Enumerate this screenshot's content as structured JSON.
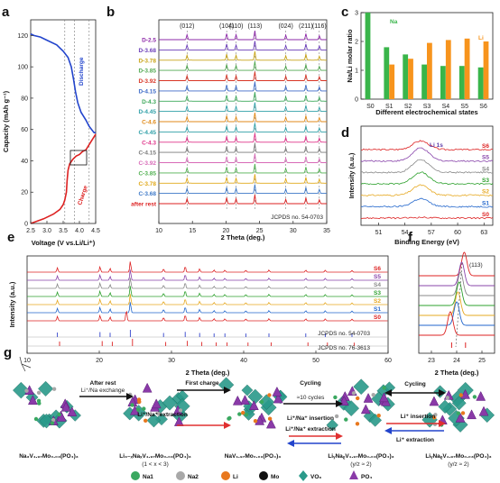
{
  "panel_labels": [
    "a",
    "b",
    "c",
    "d",
    "e",
    "f",
    "g"
  ],
  "chart_data": [
    {
      "panel": "a",
      "type": "line",
      "xlabel": "Voltage (V vs.Li/Li⁺)",
      "ylabel": "Capacity (mAh g⁻¹)",
      "xlim": [
        2.5,
        4.5
      ],
      "ylim": [
        0,
        130
      ],
      "xticks": [
        "2.5",
        "3.0",
        "3.5",
        "4.0",
        "4.5"
      ],
      "yticks": [
        "0",
        "20",
        "40",
        "60",
        "80",
        "100",
        "120"
      ],
      "vlines": [
        3.55,
        3.85,
        4.3
      ],
      "series": [
        {
          "name": "Discharge",
          "color": "#2244cc",
          "points": [
            [
              4.5,
              58
            ],
            [
              4.45,
              58
            ],
            [
              4.3,
              62
            ],
            [
              4.2,
              66
            ],
            [
              4.05,
              71
            ],
            [
              3.95,
              77
            ],
            [
              3.88,
              84
            ],
            [
              3.82,
              92
            ],
            [
              3.75,
              100
            ],
            [
              3.65,
              106
            ],
            [
              3.5,
              110
            ],
            [
              3.3,
              114
            ],
            [
              3.0,
              117
            ],
            [
              2.8,
              119
            ],
            [
              2.6,
              120
            ],
            [
              2.5,
              121
            ]
          ]
        },
        {
          "name": "Charge",
          "color": "#dd2222",
          "points": [
            [
              2.5,
              0
            ],
            [
              2.9,
              3
            ],
            [
              3.2,
              6
            ],
            [
              3.4,
              9
            ],
            [
              3.5,
              12
            ],
            [
              3.55,
              15
            ],
            [
              3.6,
              20
            ],
            [
              3.62,
              27
            ],
            [
              3.65,
              34
            ],
            [
              3.7,
              38
            ],
            [
              3.8,
              41
            ],
            [
              3.9,
              43
            ],
            [
              4.0,
              44
            ],
            [
              4.1,
              46
            ],
            [
              4.2,
              47
            ],
            [
              4.35,
              52
            ],
            [
              4.5,
              57
            ]
          ]
        }
      ]
    },
    {
      "panel": "b",
      "type": "line",
      "xlabel": "2 Theta (deg.)",
      "ylabel": "Intensity (a.u.)",
      "xlim": [
        10,
        35
      ],
      "xticks": [
        "10",
        "15",
        "20",
        "25",
        "30",
        "35"
      ],
      "peaks": [
        14.2,
        20.1,
        21.5,
        24.3,
        28.9,
        31.9,
        33.9
      ],
      "peak_labels": [
        "(012)",
        "(104)",
        "(110)",
        "(113)",
        "(024)",
        "(211)",
        "(116)"
      ],
      "series": [
        {
          "name": "D-2.5",
          "color": "#8c28a8"
        },
        {
          "name": "D-3.68",
          "color": "#6a3cb8"
        },
        {
          "name": "D-3.78",
          "color": "#c8a418"
        },
        {
          "name": "D-3.85",
          "color": "#50a850"
        },
        {
          "name": "D-3.92",
          "color": "#d83424"
        },
        {
          "name": "D-4.15",
          "color": "#3c6ac8"
        },
        {
          "name": "D-4.3",
          "color": "#3ca85a"
        },
        {
          "name": "D-4.45",
          "color": "#30a0a8"
        },
        {
          "name": "C-4.6",
          "color": "#e08a18"
        },
        {
          "name": "C-4.45",
          "color": "#30a0a8"
        },
        {
          "name": "C-4.3",
          "color": "#e0348a"
        },
        {
          "name": "C-4.15",
          "color": "#7a7a7a"
        },
        {
          "name": "C-3.92",
          "color": "#d86ab8"
        },
        {
          "name": "C-3.85",
          "color": "#50b050"
        },
        {
          "name": "C-3.78",
          "color": "#e0a818"
        },
        {
          "name": "C-3.68",
          "color": "#3c78c8"
        },
        {
          "name": "after rest",
          "color": "#dd2222"
        }
      ],
      "reference": "JCPDS no. 54-0703"
    },
    {
      "panel": "c",
      "type": "bar",
      "xlabel": "Different electrochemical states",
      "ylabel": "Na/Li molar ratio",
      "categories": [
        "S0",
        "S1",
        "S2",
        "S3",
        "S4",
        "S5",
        "S6"
      ],
      "ylim": [
        0,
        3
      ],
      "yticks": [
        "0",
        "1",
        "2",
        "3"
      ],
      "series": [
        {
          "name": "Na",
          "color": "#39b54a",
          "values": [
            3.0,
            1.8,
            1.55,
            1.2,
            1.15,
            1.15,
            1.1
          ]
        },
        {
          "name": "Li",
          "color": "#f7941d",
          "values": [
            0,
            1.2,
            1.4,
            1.95,
            2.05,
            2.1,
            2.0
          ]
        }
      ]
    },
    {
      "panel": "d",
      "type": "line",
      "title": "Li 1s",
      "xlabel": "Binding Energy (eV)",
      "ylabel": "Intensity (a.u.)",
      "xlim": [
        49,
        64
      ],
      "xticks": [
        "51",
        "54",
        "57",
        "60",
        "63"
      ],
      "series": [
        {
          "name": "S6",
          "color": "#dd2222"
        },
        {
          "name": "S5",
          "color": "#8844aa"
        },
        {
          "name": "S4",
          "color": "#888888"
        },
        {
          "name": "S3",
          "color": "#2ca02c"
        },
        {
          "name": "S2",
          "color": "#e6a820"
        },
        {
          "name": "S1",
          "color": "#2266cc"
        },
        {
          "name": "S0",
          "color": "#dd2222"
        }
      ]
    },
    {
      "panel": "e",
      "type": "line",
      "xlabel": "2 Theta (deg.)",
      "ylabel": "Intensity (a.u.)",
      "xlim": [
        10,
        60
      ],
      "xticks": [
        "10",
        "20",
        "30",
        "40",
        "50",
        "60"
      ],
      "peaks": [
        14.2,
        20.1,
        21.5,
        24.3,
        28.9,
        31.9,
        33.9,
        35.9,
        37.4,
        40.3,
        43.5,
        48.6,
        51.3,
        55.0
      ],
      "series": [
        {
          "name": "S6",
          "color": "#dd2222"
        },
        {
          "name": "S5",
          "color": "#8844aa"
        },
        {
          "name": "S4",
          "color": "#888888"
        },
        {
          "name": "S3",
          "color": "#2ca02c"
        },
        {
          "name": "S2",
          "color": "#e6a820"
        },
        {
          "name": "S1",
          "color": "#2266cc"
        },
        {
          "name": "S0",
          "color": "#dd2222"
        }
      ],
      "references": [
        {
          "name": "JCPDS no. 54-0703",
          "color": "#3344cc"
        },
        {
          "name": "JCPDS no. 76-3613",
          "color": "#dd2222"
        }
      ]
    },
    {
      "panel": "f",
      "type": "line",
      "xlabel": "2 Theta (deg.)",
      "xlim": [
        22.5,
        25.5
      ],
      "xticks": [
        "23",
        "24",
        "25"
      ],
      "annotation": "(113)",
      "peak_centers": [
        24.3,
        24.2,
        24.15,
        24.1,
        24.05,
        24.0,
        23.75
      ],
      "series_colors": [
        "#dd2222",
        "#8844aa",
        "#888888",
        "#2ca02c",
        "#e6a820",
        "#2266cc",
        "#dd2222"
      ]
    }
  ],
  "panel_g": {
    "arrows": [
      {
        "label": "After rest",
        "sub": "Li⁺/Na exchange"
      },
      {
        "label": "First charge"
      },
      {
        "label": "Cycling",
        "sub": "≈10 cycles"
      },
      {
        "label": "Cycling"
      },
      {
        "label": "Li⁺/Na⁺ extraction"
      },
      {
        "label": "Li⁺/Na⁺ insertion"
      },
      {
        "label": "Li⁺/Na⁺ extraction"
      },
      {
        "label": "Li⁺ insertion"
      },
      {
        "label": "Li⁺ extraction"
      }
    ],
    "formulas": [
      "Na₃V₁.₉₇Mo₀.₀₃(PO₄)₃",
      "Li₃₋ₓNaₓV₁.₉₇Mo₀.₀₃(PO₄)₃",
      "NaV₁.₉₇Mo₀.₀₃(PO₄)₃",
      "LiᵧNaᵨV₁.₉₇Mo₀.₀₃(PO₄)₃",
      "LiᵧNaᵨV₁.₉₇Mo₀.₀₃(PO₄)₃"
    ],
    "formula_notes": [
      "",
      "(1 < x < 3)",
      "",
      "(y/z ≈ 2)",
      "(y/z ≈ 2)"
    ],
    "legend": [
      {
        "label": "Na1",
        "color": "#3aa860"
      },
      {
        "label": "Na2",
        "color": "#a8a8a8"
      },
      {
        "label": "Li",
        "color": "#e8781e"
      },
      {
        "label": "Mo",
        "color": "#111111"
      },
      {
        "label": "VO₆",
        "color": "#2a9a8a"
      },
      {
        "label": "PO₄",
        "color": "#8a3aa8"
      }
    ]
  }
}
